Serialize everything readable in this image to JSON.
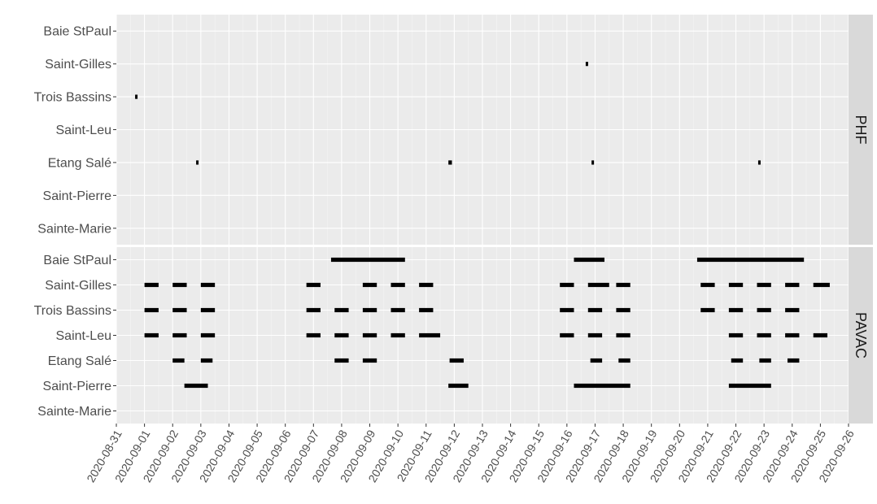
{
  "chart_data": {
    "type": "timeline",
    "x_range": [
      "2020-08-31",
      "2020-09-26"
    ],
    "x_ticks": [
      "2020-08-31",
      "2020-09-01",
      "2020-09-02",
      "2020-09-03",
      "2020-09-04",
      "2020-09-05",
      "2020-09-06",
      "2020-09-07",
      "2020-09-08",
      "2020-09-09",
      "2020-09-10",
      "2020-09-11",
      "2020-09-12",
      "2020-09-13",
      "2020-09-14",
      "2020-09-15",
      "2020-09-16",
      "2020-09-17",
      "2020-09-18",
      "2020-09-19",
      "2020-09-20",
      "2020-09-21",
      "2020-09-22",
      "2020-09-23",
      "2020-09-24",
      "2020-09-25",
      "2020-09-26"
    ],
    "categories": [
      "Baie StPaul",
      "Saint-Gilles",
      "Trois Bassins",
      "Saint-Leu",
      "Etang Salé",
      "Saint-Pierre",
      "Sainte-Marie"
    ],
    "grid": true,
    "facets": [
      {
        "label": "PHF",
        "segments": {
          "Baie StPaul": [],
          "Saint-Gilles": [
            [
              "2020-09-16T16:00",
              "2020-09-16T18:00"
            ]
          ],
          "Trois Bassins": [
            [
              "2020-08-31T16:00",
              "2020-08-31T18:00"
            ]
          ],
          "Saint-Leu": [],
          "Etang Salé": [
            [
              "2020-09-02T20:00",
              "2020-09-02T22:00"
            ],
            [
              "2020-09-11T19:00",
              "2020-09-11T22:00"
            ],
            [
              "2020-09-16T21:00",
              "2020-09-16T22:00"
            ],
            [
              "2020-09-22T19:00",
              "2020-09-22T21:00"
            ]
          ],
          "Saint-Pierre": [],
          "Sainte-Marie": []
        }
      },
      {
        "label": "PAVAC",
        "segments": {
          "Baie StPaul": [
            [
              "2020-09-07T15:00",
              "2020-09-10T06:00"
            ],
            [
              "2020-09-16T06:00",
              "2020-09-17T08:00"
            ],
            [
              "2020-09-20T15:00",
              "2020-09-24T10:00"
            ]
          ],
          "Saint-Gilles": [
            [
              "2020-09-01T00:00",
              "2020-09-01T12:00"
            ],
            [
              "2020-09-02T00:00",
              "2020-09-02T12:00"
            ],
            [
              "2020-09-03T00:00",
              "2020-09-03T12:00"
            ],
            [
              "2020-09-06T18:00",
              "2020-09-07T06:00"
            ],
            [
              "2020-09-08T18:00",
              "2020-09-09T06:00"
            ],
            [
              "2020-09-09T18:00",
              "2020-09-10T06:00"
            ],
            [
              "2020-09-10T18:00",
              "2020-09-11T06:00"
            ],
            [
              "2020-09-15T18:00",
              "2020-09-16T06:00"
            ],
            [
              "2020-09-16T18:00",
              "2020-09-17T12:00"
            ],
            [
              "2020-09-17T18:00",
              "2020-09-18T06:00"
            ],
            [
              "2020-09-20T18:00",
              "2020-09-21T06:00"
            ],
            [
              "2020-09-21T18:00",
              "2020-09-22T06:00"
            ],
            [
              "2020-09-22T18:00",
              "2020-09-23T06:00"
            ],
            [
              "2020-09-23T18:00",
              "2020-09-24T06:00"
            ],
            [
              "2020-09-24T18:00",
              "2020-09-25T08:00"
            ]
          ],
          "Trois Bassins": [
            [
              "2020-09-01T00:00",
              "2020-09-01T12:00"
            ],
            [
              "2020-09-02T00:00",
              "2020-09-02T12:00"
            ],
            [
              "2020-09-03T00:00",
              "2020-09-03T12:00"
            ],
            [
              "2020-09-06T18:00",
              "2020-09-07T06:00"
            ],
            [
              "2020-09-07T18:00",
              "2020-09-08T06:00"
            ],
            [
              "2020-09-08T18:00",
              "2020-09-09T06:00"
            ],
            [
              "2020-09-09T18:00",
              "2020-09-10T06:00"
            ],
            [
              "2020-09-10T18:00",
              "2020-09-11T06:00"
            ],
            [
              "2020-09-15T18:00",
              "2020-09-16T06:00"
            ],
            [
              "2020-09-16T18:00",
              "2020-09-17T06:00"
            ],
            [
              "2020-09-17T18:00",
              "2020-09-18T06:00"
            ],
            [
              "2020-09-20T18:00",
              "2020-09-21T06:00"
            ],
            [
              "2020-09-21T18:00",
              "2020-09-22T06:00"
            ],
            [
              "2020-09-22T18:00",
              "2020-09-23T06:00"
            ],
            [
              "2020-09-23T18:00",
              "2020-09-24T06:00"
            ]
          ],
          "Saint-Leu": [
            [
              "2020-09-01T00:00",
              "2020-09-01T12:00"
            ],
            [
              "2020-09-02T00:00",
              "2020-09-02T12:00"
            ],
            [
              "2020-09-03T00:00",
              "2020-09-03T12:00"
            ],
            [
              "2020-09-06T18:00",
              "2020-09-07T06:00"
            ],
            [
              "2020-09-07T18:00",
              "2020-09-08T06:00"
            ],
            [
              "2020-09-08T18:00",
              "2020-09-09T06:00"
            ],
            [
              "2020-09-09T18:00",
              "2020-09-10T06:00"
            ],
            [
              "2020-09-10T18:00",
              "2020-09-11T12:00"
            ],
            [
              "2020-09-15T18:00",
              "2020-09-16T06:00"
            ],
            [
              "2020-09-16T18:00",
              "2020-09-17T06:00"
            ],
            [
              "2020-09-17T18:00",
              "2020-09-18T06:00"
            ],
            [
              "2020-09-21T18:00",
              "2020-09-22T06:00"
            ],
            [
              "2020-09-22T18:00",
              "2020-09-23T06:00"
            ],
            [
              "2020-09-23T18:00",
              "2020-09-24T06:00"
            ],
            [
              "2020-09-24T18:00",
              "2020-09-25T06:00"
            ]
          ],
          "Etang Salé": [
            [
              "2020-09-02T00:00",
              "2020-09-02T10:00"
            ],
            [
              "2020-09-03T00:00",
              "2020-09-03T10:00"
            ],
            [
              "2020-09-07T18:00",
              "2020-09-08T06:00"
            ],
            [
              "2020-09-08T18:00",
              "2020-09-09T06:00"
            ],
            [
              "2020-09-11T20:00",
              "2020-09-12T08:00"
            ],
            [
              "2020-09-16T20:00",
              "2020-09-17T06:00"
            ],
            [
              "2020-09-17T20:00",
              "2020-09-18T06:00"
            ],
            [
              "2020-09-21T20:00",
              "2020-09-22T06:00"
            ],
            [
              "2020-09-22T20:00",
              "2020-09-23T06:00"
            ],
            [
              "2020-09-23T20:00",
              "2020-09-24T06:00"
            ]
          ],
          "Saint-Pierre": [
            [
              "2020-09-02T10:00",
              "2020-09-03T06:00"
            ],
            [
              "2020-09-11T19:00",
              "2020-09-12T12:00"
            ],
            [
              "2020-09-16T06:00",
              "2020-09-18T06:00"
            ],
            [
              "2020-09-21T18:00",
              "2020-09-23T06:00"
            ]
          ],
          "Sainte-Marie": []
        }
      }
    ]
  }
}
